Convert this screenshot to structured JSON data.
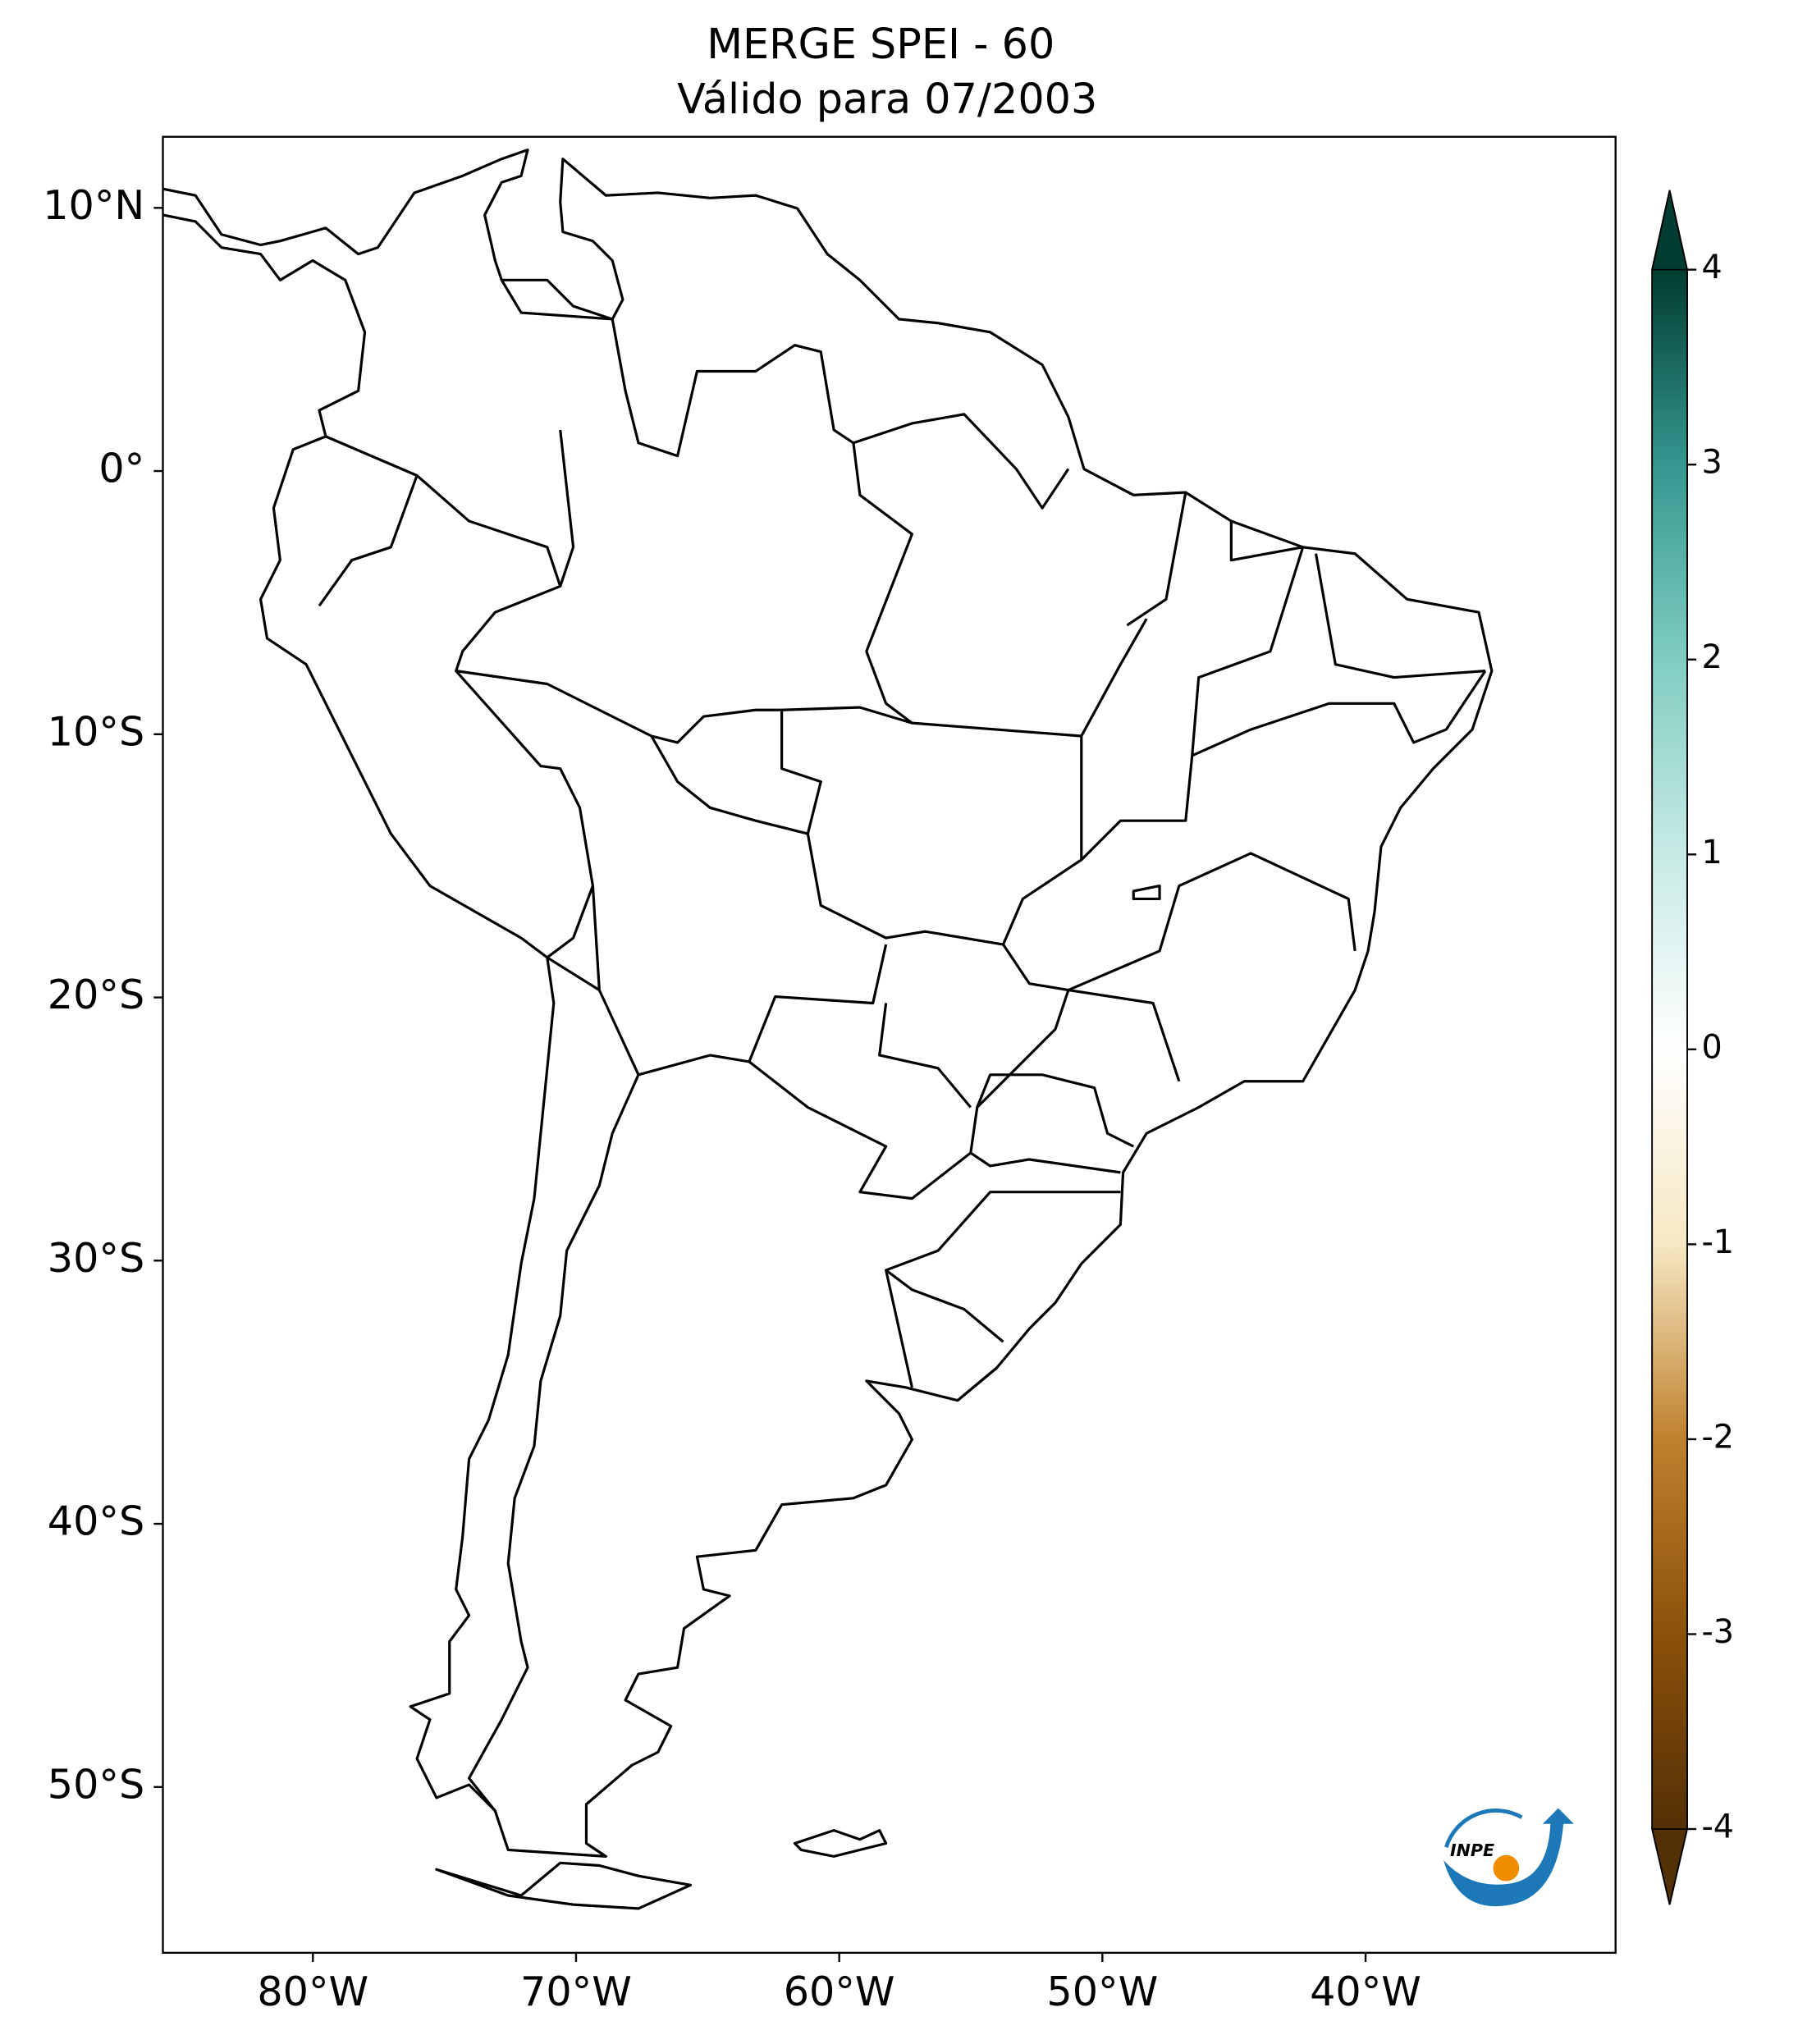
{
  "map": {
    "title": "MERGE   SPEI - 60",
    "subtitle": "Válido para 07/2003",
    "xlim": [
      -85.7,
      -30.5
    ],
    "ylim": [
      -56.3,
      12.7
    ],
    "lon_ticks": [
      {
        "value": -80,
        "label": "80°W"
      },
      {
        "value": -70,
        "label": "70°W"
      },
      {
        "value": -60,
        "label": "60°W"
      },
      {
        "value": -50,
        "label": "50°W"
      },
      {
        "value": -40,
        "label": "40°W"
      }
    ],
    "lat_ticks": [
      {
        "value": 10,
        "label": "10°N"
      },
      {
        "value": 0,
        "label": "0°"
      },
      {
        "value": -10,
        "label": "10°S"
      },
      {
        "value": -20,
        "label": "20°S"
      },
      {
        "value": -30,
        "label": "30°S"
      },
      {
        "value": -40,
        "label": "40°S"
      },
      {
        "value": -50,
        "label": "50°S"
      }
    ],
    "colorbar": {
      "lim": [
        -4,
        4
      ],
      "ticks": [
        4,
        3,
        2,
        1,
        0,
        -1,
        -2,
        -3,
        -4
      ],
      "colors": [
        "#543005",
        "#8c510a",
        "#bf812d",
        "#f6e8c3",
        "#ffffff",
        "#c7eae5",
        "#80cdc1",
        "#35978f",
        "#003c30"
      ]
    },
    "logo": "INPE"
  }
}
